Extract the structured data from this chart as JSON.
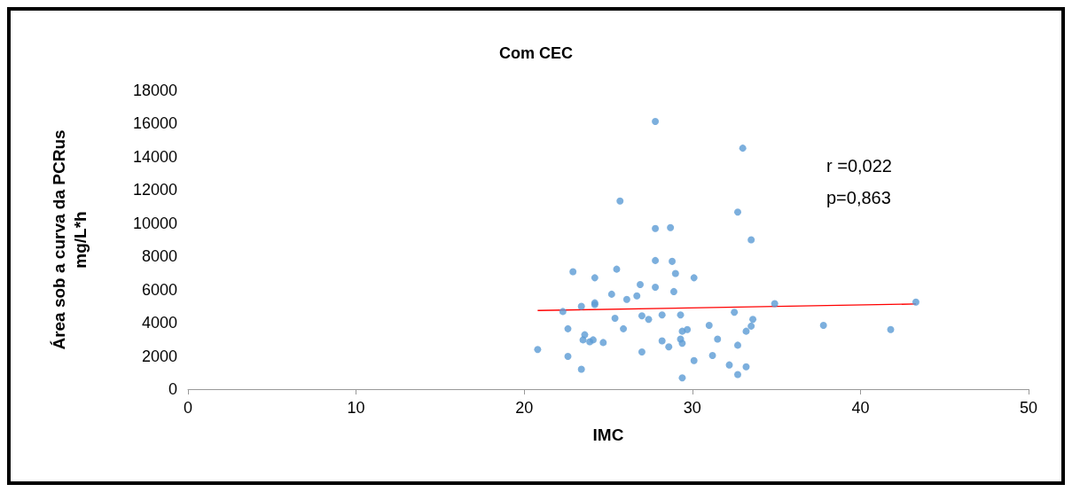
{
  "chart_data": {
    "type": "scatter",
    "title": "Com CEC",
    "xlabel": "IMC",
    "ylabel": "Área sob a curva da PCRus\nmg/L*h",
    "annotations": [
      "r =0,022",
      "p=0,863"
    ],
    "xlim": [
      0,
      50
    ],
    "xticks": [
      0,
      10,
      20,
      30,
      40,
      50
    ],
    "ylim": [
      0,
      18000
    ],
    "yticks": [
      0,
      2000,
      4000,
      6000,
      8000,
      10000,
      12000,
      14000,
      16000,
      18000
    ],
    "grid": false,
    "marker": "circle",
    "series": [
      {
        "color": "#5b9bd5",
        "x": [
          20.8,
          22.3,
          22.6,
          22.6,
          22.9,
          23.4,
          23.4,
          23.5,
          23.6,
          23.9,
          24.1,
          24.2,
          24.2,
          24.2,
          24.7,
          25.2,
          25.4,
          25.5,
          25.7,
          25.9,
          26.1,
          26.7,
          26.9,
          27.0,
          27.0,
          27.4,
          27.8,
          27.8,
          27.8,
          27.8,
          28.2,
          28.2,
          28.6,
          28.7,
          28.8,
          28.9,
          29.0,
          29.3,
          29.3,
          29.4,
          29.4,
          29.4,
          29.7,
          30.1,
          30.1,
          31.0,
          31.2,
          31.5,
          32.2,
          32.5,
          32.7,
          32.7,
          32.7,
          33.0,
          33.2,
          33.2,
          33.5,
          33.5,
          33.6,
          34.9,
          37.8,
          41.8,
          43.3
        ],
        "values": [
          2390,
          4680,
          3640,
          1980,
          7080,
          4990,
          1200,
          2970,
          3280,
          2860,
          2970,
          5100,
          5200,
          6710,
          2810,
          5720,
          4270,
          7230,
          11340,
          3640,
          5410,
          5620,
          6300,
          4420,
          2240,
          4210,
          7750,
          9680,
          16130,
          6140,
          4470,
          2910,
          2550,
          9730,
          7700,
          5880,
          6970,
          4470,
          3020,
          2760,
          680,
          3490,
          3590,
          1720,
          6710,
          3850,
          2030,
          3020,
          1460,
          4630,
          2650,
          880,
          10670,
          14520,
          1350,
          3490,
          9000,
          3800,
          4210,
          5150,
          3850,
          3590,
          5250
        ]
      },
      {
        "type": "line",
        "color": "#ff0000",
        "marker": "none",
        "x": [
          20.8,
          43.3
        ],
        "values": [
          4740,
          5130
        ]
      }
    ]
  }
}
